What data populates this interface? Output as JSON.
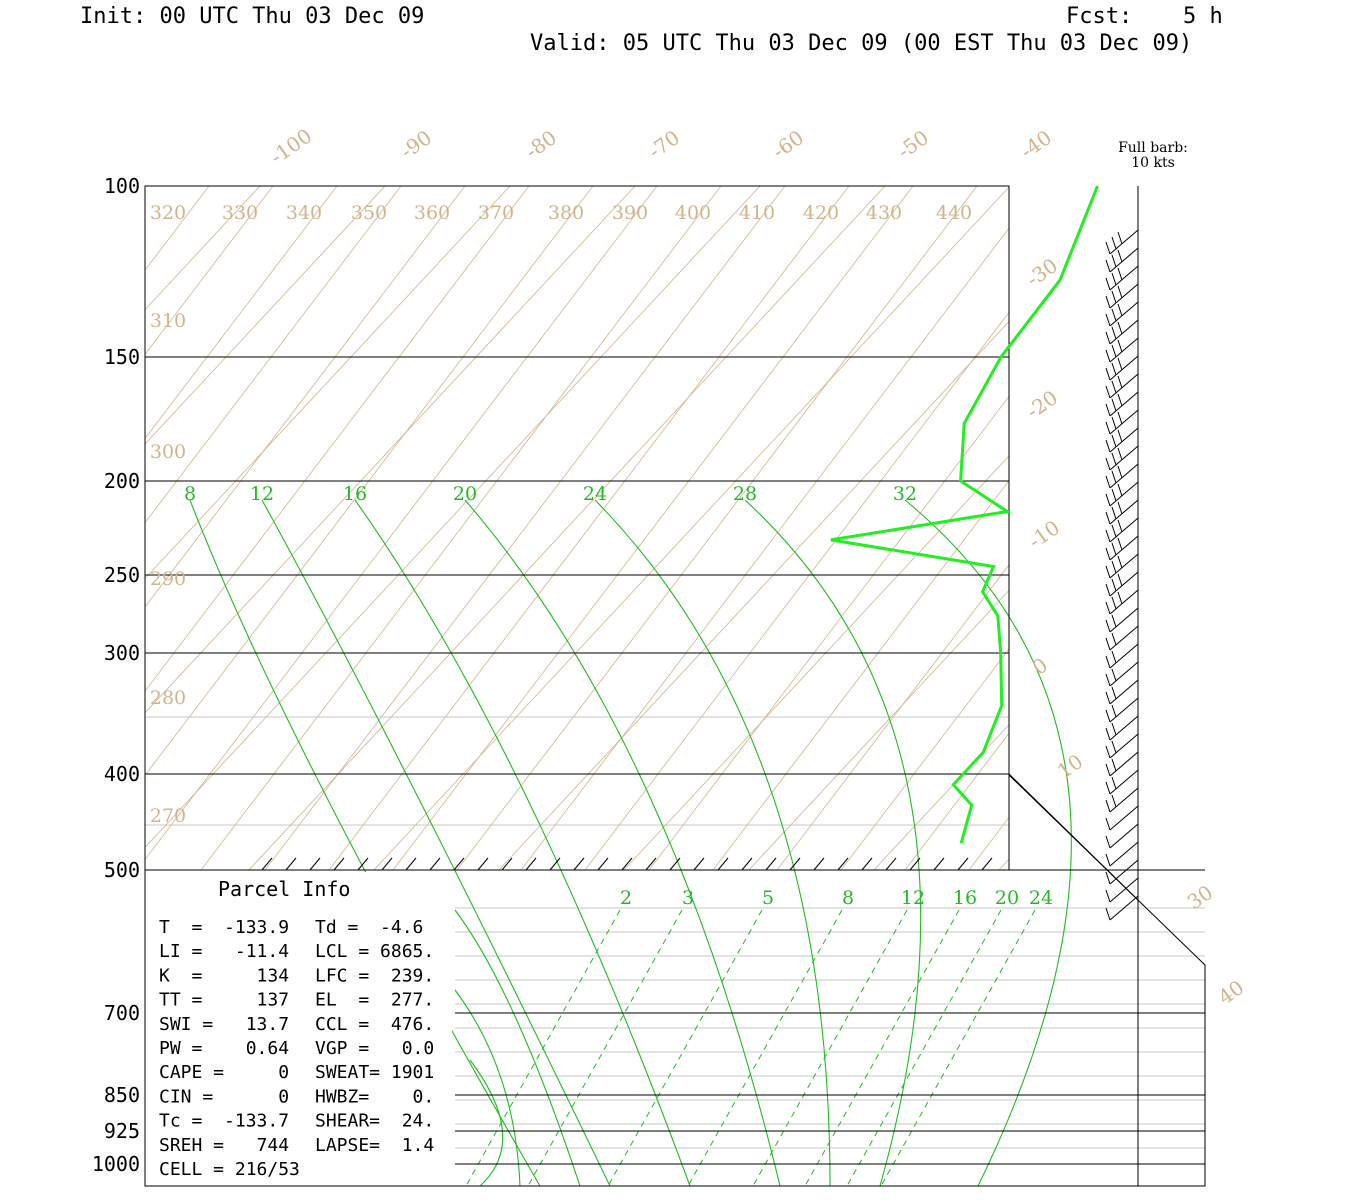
{
  "header": {
    "init": "Init: 00 UTC Thu 03 Dec 09",
    "fcst_label": "Fcst:",
    "fcst_value": "5 h",
    "valid": "Valid: 05 UTC Thu 03 Dec 09 (00 EST Thu 03 Dec 09)"
  },
  "barb_legend": {
    "line1": "Full barb:",
    "line2": "10 kts"
  },
  "colors": {
    "isobar": "#000000",
    "background_lines": "#d2b48c",
    "mixing_ratio": "#22bb22",
    "profile": "#22ee22",
    "barbs": "#000000"
  },
  "chart_data": {
    "type": "line",
    "pressure_labels": [
      "100",
      "150",
      "200",
      "250",
      "300",
      "400",
      "500",
      "700",
      "850",
      "925",
      "1000"
    ],
    "pressure_values": [
      100,
      150,
      200,
      250,
      300,
      400,
      500,
      700,
      850,
      925,
      1000
    ],
    "temperature_labels": [
      "-100",
      "-90",
      "-80",
      "-70",
      "-60",
      "-50",
      "-40",
      "-30",
      "-20",
      "-10",
      "0",
      "10",
      "30",
      "40"
    ],
    "theta_labels": [
      "320",
      "330",
      "340",
      "350",
      "360",
      "370",
      "380",
      "390",
      "400",
      "410",
      "420",
      "430",
      "440",
      "310",
      "300",
      "290",
      "280",
      "270"
    ],
    "mixing_ratio_upper_labels": [
      "8",
      "12",
      "16",
      "20",
      "24",
      "28",
      "32"
    ],
    "mixing_ratio_lower_labels": [
      "2",
      "3",
      "5",
      "8",
      "12",
      "16",
      "20",
      "24"
    ],
    "series": [
      {
        "values": [
          [
            100,
            -33
          ],
          [
            125,
            -29
          ],
          [
            150,
            -28
          ],
          [
            175,
            -26
          ],
          [
            200,
            -22
          ],
          [
            215,
            -16
          ],
          [
            230,
            -28
          ],
          [
            245,
            -13
          ],
          [
            260,
            -12
          ],
          [
            275,
            -9
          ],
          [
            300,
            -6
          ],
          [
            340,
            -2
          ],
          [
            380,
            0
          ],
          [
            410,
            0
          ],
          [
            430,
            3
          ],
          [
            470,
            5
          ]
        ]
      }
    ]
  },
  "parcel_info": {
    "title": "Parcel Info",
    "rows": [
      [
        "T  =  -133.9",
        "Td =  -4.6"
      ],
      [
        "LI =   -11.4",
        "LCL = 6865."
      ],
      [
        "K  =     134",
        "LFC =  239."
      ],
      [
        "TT =     137",
        "EL  =  277."
      ],
      [
        "SWI =   13.7",
        "CCL =  476."
      ],
      [
        "PW =    0.64",
        "VGP =   0.0"
      ],
      [
        "CAPE =     0",
        "SWEAT= 1901"
      ],
      [
        "CIN =      0",
        "HWBZ=    0."
      ],
      [
        "Tc =  -133.7",
        "SHEAR=  24."
      ],
      [
        "SREH =   744",
        "LAPSE=  1.4"
      ],
      [
        "CELL = 216/53",
        ""
      ]
    ]
  }
}
